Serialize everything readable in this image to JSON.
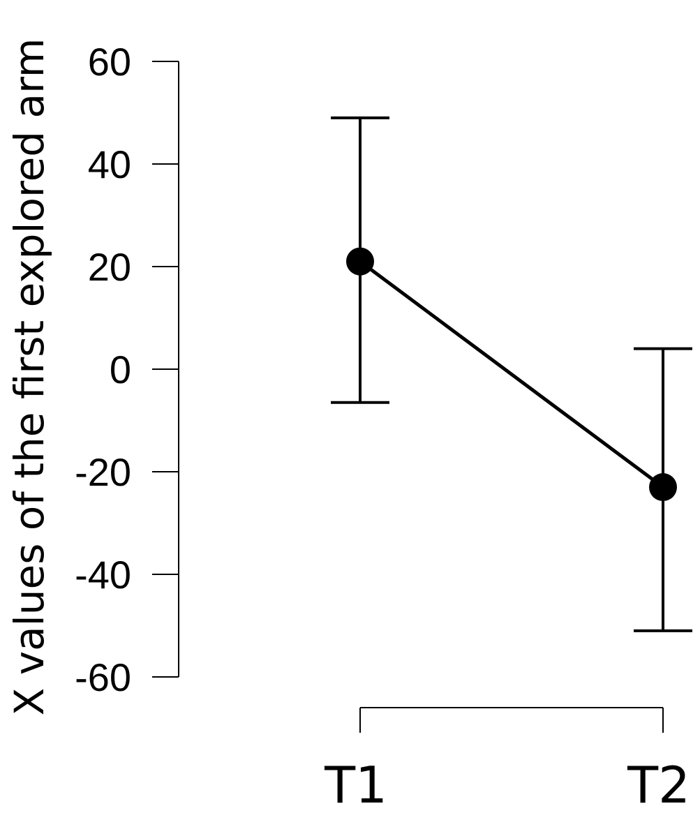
{
  "chart_data": {
    "type": "line",
    "title": "",
    "xlabel": "",
    "ylabel": "X values of the first explored  arm",
    "categories": [
      "T1",
      "T2"
    ],
    "values": [
      21,
      -23
    ],
    "error_upper": [
      49,
      4
    ],
    "error_lower": [
      -6.5,
      -51
    ],
    "ylim": [
      -60,
      60
    ],
    "yticks": [
      60,
      40,
      20,
      0,
      -20,
      -40,
      -60
    ],
    "ytick_labels": [
      "60",
      "40",
      "20",
      "0",
      "-20",
      "-40",
      "-60"
    ],
    "grid": false,
    "legend": "none"
  }
}
